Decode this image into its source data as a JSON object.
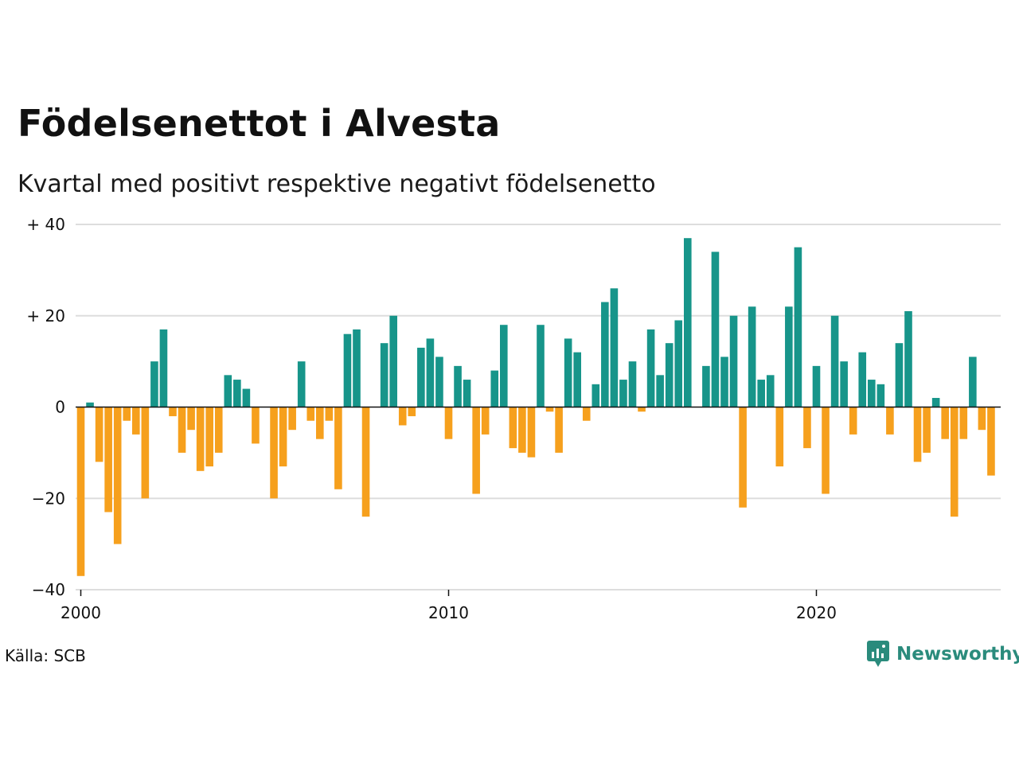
{
  "title": "Födelsenettot i Alvesta",
  "subtitle": "Kvartal med positivt respektive negativt födelsenetto",
  "source": "Källa: SCB",
  "brand": "Newsworthy",
  "colors": {
    "positive": "#17958a",
    "negative": "#f6a01d",
    "grid": "#dddddd",
    "brand": "#2a8b7c"
  },
  "chart_data": {
    "type": "bar",
    "x_start": 2000,
    "x_step": "quarter",
    "x_ticks": [
      {
        "year": 2000,
        "label": "2000"
      },
      {
        "year": 2010,
        "label": "2010"
      },
      {
        "year": 2020,
        "label": "2020"
      }
    ],
    "y_ticks": [
      {
        "value": 40,
        "label": "+ 40"
      },
      {
        "value": 20,
        "label": "+ 20"
      },
      {
        "value": 0,
        "label": "0"
      },
      {
        "value": -20,
        "label": "−20"
      },
      {
        "value": -40,
        "label": "−40"
      }
    ],
    "ylim": [
      -40,
      40
    ],
    "grid": true,
    "values": [
      -37,
      1,
      -12,
      -23,
      -30,
      -3,
      -6,
      -20,
      10,
      17,
      -2,
      -10,
      -5,
      -14,
      -13,
      -10,
      7,
      6,
      4,
      -8,
      0,
      -20,
      -13,
      -5,
      10,
      -3,
      -7,
      -3,
      -18,
      16,
      17,
      -24,
      0,
      14,
      20,
      -4,
      -2,
      13,
      15,
      11,
      -7,
      9,
      6,
      -19,
      -6,
      8,
      18,
      -9,
      -10,
      -11,
      18,
      -1,
      -10,
      15,
      12,
      -3,
      5,
      23,
      26,
      6,
      10,
      -1,
      17,
      7,
      14,
      19,
      37,
      0,
      9,
      34,
      11,
      20,
      -22,
      22,
      6,
      7,
      -13,
      22,
      35,
      -9,
      9,
      -19,
      20,
      10,
      -6,
      12,
      6,
      5,
      -6,
      14,
      21,
      -12,
      -10,
      2,
      -7,
      -24,
      -7,
      11,
      -5,
      -15
    ]
  }
}
